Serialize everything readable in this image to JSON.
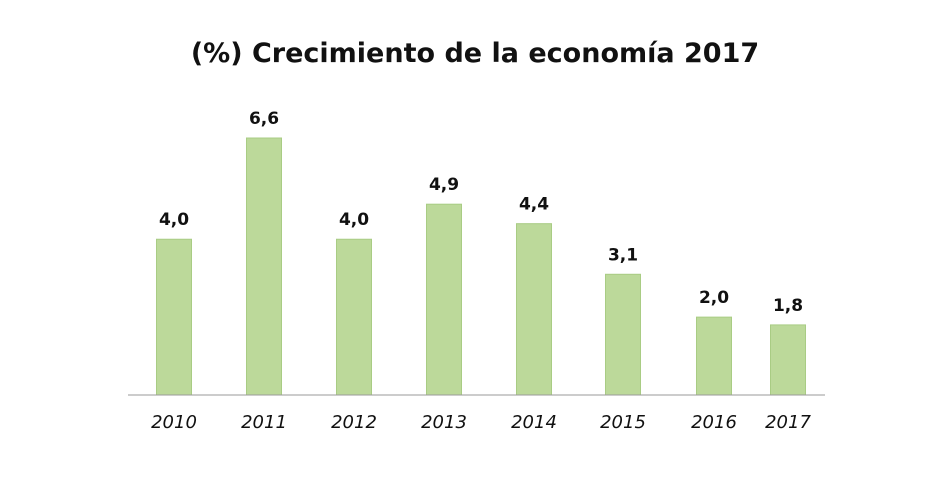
{
  "chart_data": {
    "type": "bar",
    "title": "(%) Crecimiento de la economía 2017",
    "xlabel": "",
    "ylabel": "",
    "categories": [
      "2010",
      "2011",
      "2012",
      "2013",
      "2014",
      "2015",
      "2016",
      "2017"
    ],
    "values": [
      4.0,
      6.6,
      4.0,
      4.9,
      4.4,
      3.1,
      2.0,
      1.8
    ],
    "value_labels": [
      "4,0",
      "6,6",
      "4,0",
      "4,9",
      "4,4",
      "3,1",
      "2,0",
      "1,8"
    ],
    "ylim": [
      0,
      6.6
    ],
    "grid": false,
    "legend": "none",
    "colors": {
      "bar_fill": "#bcd99a",
      "bar_stroke": "#a9cc84",
      "axis": "#9a9a9a",
      "text": "#111111"
    }
  }
}
